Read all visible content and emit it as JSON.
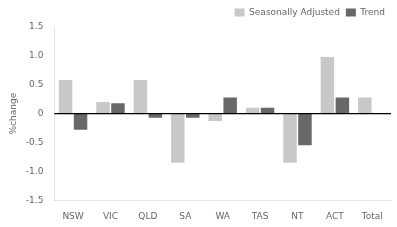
{
  "chart_data": {
    "type": "bar",
    "categories": [
      "NSW",
      "VIC",
      "QLD",
      "SA",
      "WA",
      "TAS",
      "NT",
      "ACT",
      "Total"
    ],
    "series": [
      {
        "name": "Seasonally Adjusted",
        "color": "#c8c8c8",
        "values": [
          0.58,
          0.2,
          0.58,
          -0.85,
          -0.13,
          0.1,
          -0.85,
          0.98,
          0.28
        ]
      },
      {
        "name": "Trend",
        "color": "#686868",
        "values": [
          -0.28,
          0.18,
          -0.07,
          -0.07,
          0.28,
          0.1,
          -0.55,
          0.28,
          0.0
        ]
      }
    ],
    "ylabel": "%change",
    "ylim": [
      -1.5,
      1.5
    ],
    "yticks": [
      -1.5,
      {
        "value": -1.0,
        "label": "-1.0"
      },
      -0.5,
      0,
      0.5,
      {
        "value": 1.0,
        "label": "1.0"
      },
      1.5
    ],
    "grid": false,
    "legend": "upper right"
  }
}
